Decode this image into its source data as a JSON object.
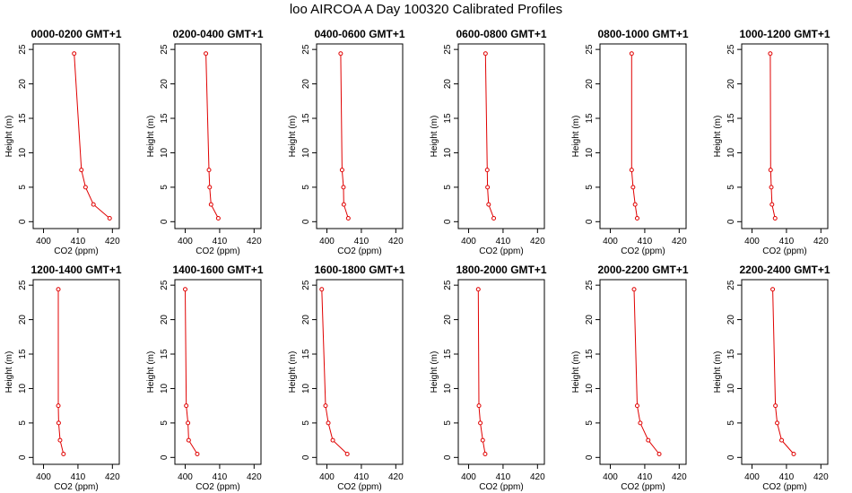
{
  "title": "loo AIRCOA A  Day 100320  Calibrated Profiles",
  "chart_data": {
    "type": "line",
    "line_color": "#e00000",
    "xlabel": "CO2 (ppm)",
    "ylabel": "Height (m)",
    "xlim": [
      397,
      422
    ],
    "ylim": [
      -1,
      25.8
    ],
    "xticks": [
      "400",
      "410",
      "420"
    ],
    "yticks": [
      "0",
      "5",
      "10",
      "15",
      "20",
      "25"
    ],
    "heights": [
      24.4,
      7.5,
      5.0,
      2.5,
      0.5
    ],
    "panels": [
      {
        "title": "0000-0200 GMT+1",
        "co2": [
          408.9,
          411.0,
          412.2,
          414.5,
          419.2
        ]
      },
      {
        "title": "0200-0400 GMT+1",
        "co2": [
          406.0,
          406.9,
          407.1,
          407.5,
          409.6
        ]
      },
      {
        "title": "0400-0600 GMT+1",
        "co2": [
          404.0,
          404.4,
          404.8,
          404.9,
          406.2
        ]
      },
      {
        "title": "0600-0800 GMT+1",
        "co2": [
          404.9,
          405.4,
          405.5,
          405.8,
          407.3
        ]
      },
      {
        "title": "0800-1000 GMT+1",
        "co2": [
          406.2,
          406.2,
          406.6,
          407.2,
          407.8
        ]
      },
      {
        "title": "1000-1200 GMT+1",
        "co2": [
          405.3,
          405.4,
          405.6,
          405.8,
          406.7
        ]
      },
      {
        "title": "1200-1400 GMT+1",
        "co2": [
          404.3,
          404.3,
          404.4,
          404.8,
          405.8
        ]
      },
      {
        "title": "1400-1600 GMT+1",
        "co2": [
          400.0,
          400.3,
          400.8,
          401.0,
          403.5
        ]
      },
      {
        "title": "1600-1800 GMT+1",
        "co2": [
          398.5,
          399.6,
          400.4,
          401.7,
          405.9
        ]
      },
      {
        "title": "1800-2000 GMT+1",
        "co2": [
          402.8,
          403.0,
          403.4,
          404.1,
          404.8
        ]
      },
      {
        "title": "2000-2200 GMT+1",
        "co2": [
          406.9,
          407.8,
          408.7,
          411.0,
          414.2
        ]
      },
      {
        "title": "2200-2400 GMT+1",
        "co2": [
          406.0,
          406.8,
          407.3,
          408.6,
          412.1
        ]
      }
    ]
  }
}
